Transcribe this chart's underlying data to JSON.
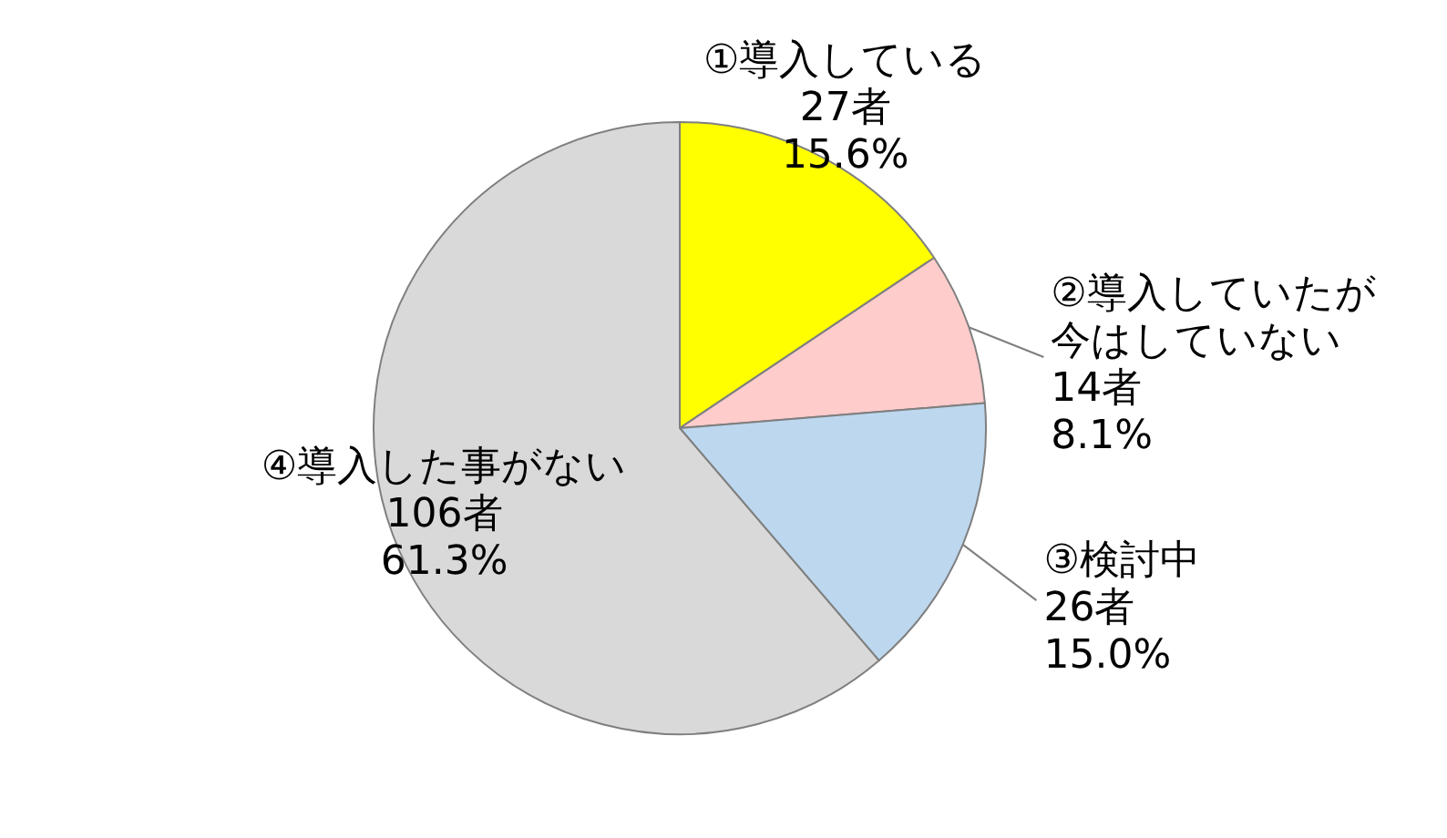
{
  "chart_data": {
    "type": "pie",
    "categories": [
      "①導入している",
      "②導入していたが今はしていない",
      "③検討中",
      "④導入した事がない"
    ],
    "values": [
      27,
      14,
      26,
      106
    ],
    "value_labels": [
      "27者\n15.6%",
      "14者\n8.1%",
      "26者\n15.0%",
      "106者\n61.3%"
    ],
    "colors": [
      "#ffff00",
      "#ffcccc",
      "#bdd7ee",
      "#d9d9d9"
    ]
  }
}
